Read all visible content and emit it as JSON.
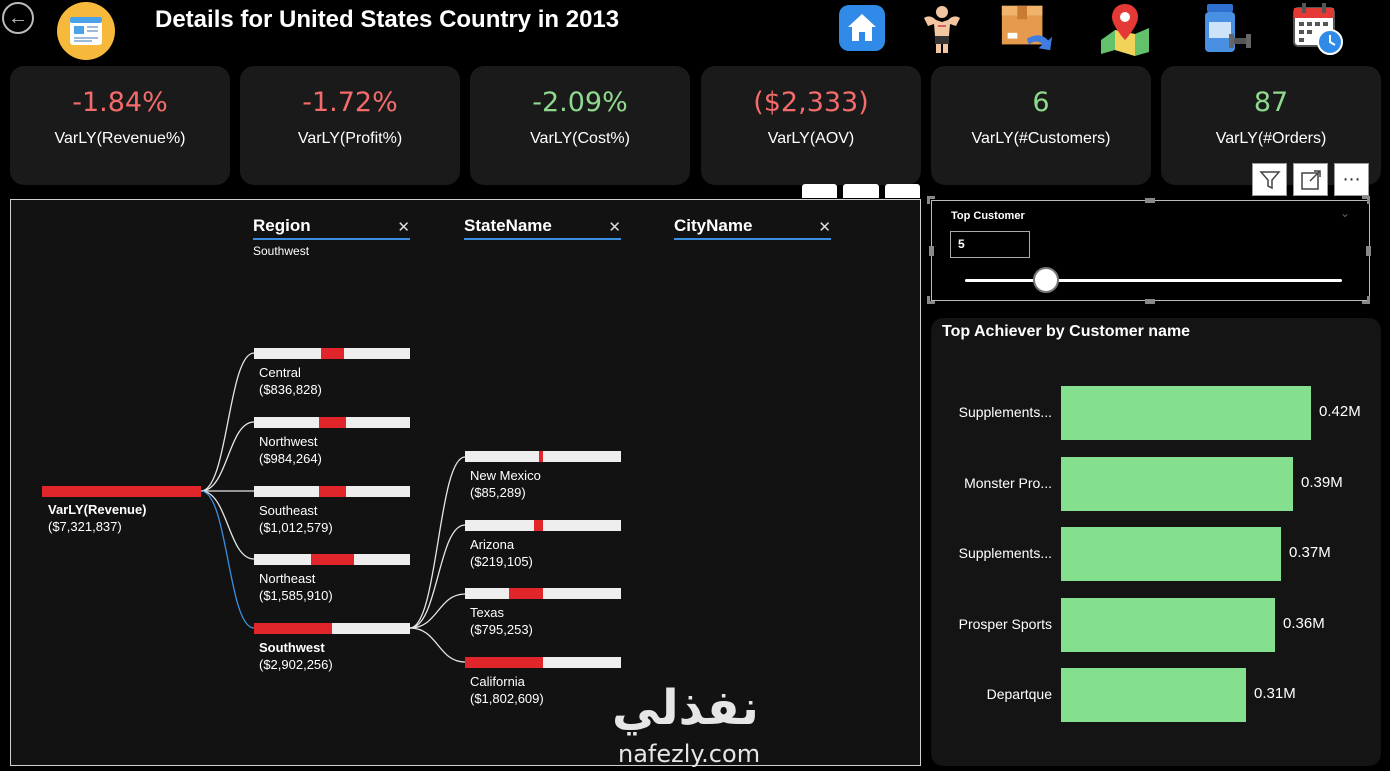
{
  "header": {
    "title": "Details for United States Country in 2013",
    "nav_icons": [
      "home-icon",
      "fitness-man-icon",
      "return-box-icon",
      "map-pin-icon",
      "supplement-icon",
      "calendar-clock-icon"
    ]
  },
  "kpis": [
    {
      "value": "-1.84%",
      "label": "VarLY(Revenue%)",
      "color": "#f36b6b"
    },
    {
      "value": "-1.72%",
      "label": "VarLY(Profit%)",
      "color": "#f36b6b"
    },
    {
      "value": "-2.09%",
      "label": "VarLY(Cost%)",
      "color": "#8fd98f"
    },
    {
      "value": "($2,333)",
      "label": "VarLY(AOV)",
      "color": "#f36b6b"
    },
    {
      "value": "6",
      "label": "VarLY(#Customers)",
      "color": "#8fd98f"
    },
    {
      "value": "87",
      "label": "VarLY(#Orders)",
      "color": "#8fd98f"
    }
  ],
  "tree": {
    "levels": [
      {
        "name": "Region",
        "selected": "Southwest"
      },
      {
        "name": "StateName",
        "selected": ""
      },
      {
        "name": "CityName",
        "selected": ""
      }
    ],
    "root": {
      "name": "VarLY(Revenue)",
      "value": "($7,321,837)",
      "fill": 1.0
    },
    "regions": [
      {
        "name": "Central",
        "value": "($836,828)",
        "fill": 0.29
      },
      {
        "name": "Northwest",
        "value": "($984,264)",
        "fill": 0.34
      },
      {
        "name": "Southeast",
        "value": "($1,012,579)",
        "fill": 0.35
      },
      {
        "name": "Northeast",
        "value": "($1,585,910)",
        "fill": 0.55
      },
      {
        "name": "Southwest",
        "value": "($2,902,256)",
        "fill": 1.0
      }
    ],
    "states": [
      {
        "name": "New Mexico",
        "value": "($85,289)",
        "fill": 0.05
      },
      {
        "name": "Arizona",
        "value": "($219,105)",
        "fill": 0.12
      },
      {
        "name": "Texas",
        "value": "($795,253)",
        "fill": 0.44
      },
      {
        "name": "California",
        "value": "($1,802,609)",
        "fill": 1.0
      }
    ]
  },
  "slicer": {
    "title": "Top Customer",
    "value": "5"
  },
  "chart_data": {
    "type": "bar",
    "orientation": "horizontal",
    "title": "Top Achiever by Customer name",
    "categories": [
      "Supplements...",
      "Monster Pro...",
      "Supplements...",
      "Prosper Sports",
      "Departque"
    ],
    "values": [
      0.42,
      0.39,
      0.37,
      0.36,
      0.31
    ],
    "data_labels": [
      "0.42M",
      "0.39M",
      "0.37M",
      "0.36M",
      "0.31M"
    ],
    "bar_color": "#84e08f",
    "xlim": [
      0,
      0.42
    ]
  },
  "watermark": {
    "arabic": "نفذلي",
    "latin": "nafezly.com"
  }
}
